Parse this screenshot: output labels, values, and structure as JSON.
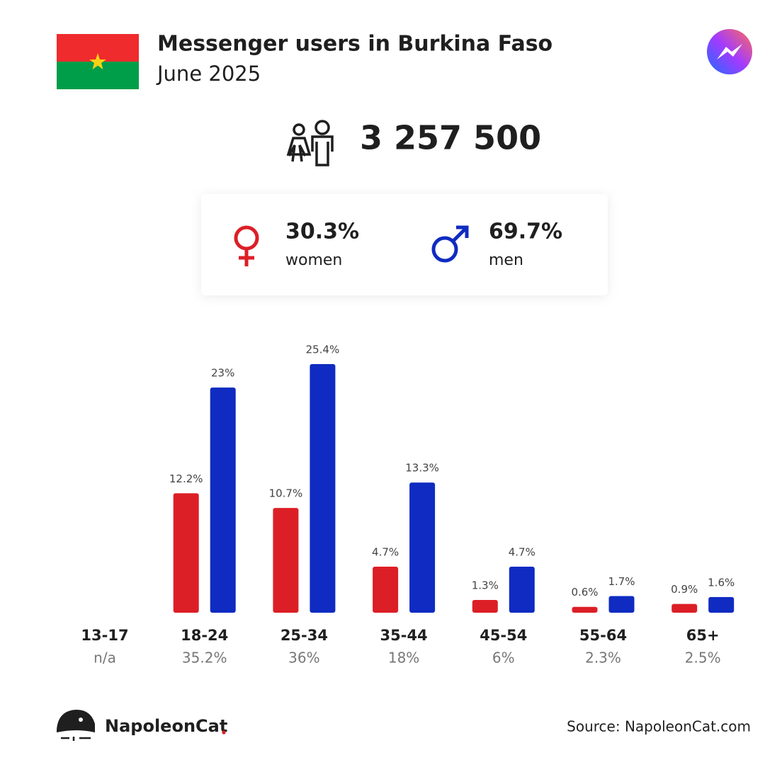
{
  "header": {
    "title": "Messenger users in Burkina Faso",
    "subtitle": "June 2025"
  },
  "total_users": "3 257 500",
  "chart_data": {
    "type": "bar",
    "categories": [
      "13-17",
      "18-24",
      "25-34",
      "35-44",
      "45-54",
      "55-64",
      "65+"
    ],
    "category_totals": [
      "n/a",
      "35.2%",
      "36%",
      "18%",
      "6%",
      "2.3%",
      "2.5%"
    ],
    "ylim": [
      0,
      25.4
    ],
    "series": [
      {
        "name": "women",
        "share_label": "30.3%",
        "color": "#dc1f26",
        "values": [
          null,
          12.2,
          10.7,
          4.7,
          1.3,
          0.6,
          0.9
        ],
        "value_labels": [
          null,
          "12.2%",
          "10.7%",
          "4.7%",
          "1.3%",
          "0.6%",
          "0.9%"
        ]
      },
      {
        "name": "men",
        "share_label": "69.7%",
        "color": "#0f2bc1",
        "values": [
          null,
          23,
          25.4,
          13.3,
          4.7,
          1.7,
          1.6
        ],
        "value_labels": [
          null,
          "23%",
          "25.4%",
          "13.3%",
          "4.7%",
          "1.7%",
          "1.6%"
        ]
      }
    ]
  },
  "footer": {
    "brand": "NapoleonCat",
    "source": "Source: NapoleonCat.com"
  }
}
